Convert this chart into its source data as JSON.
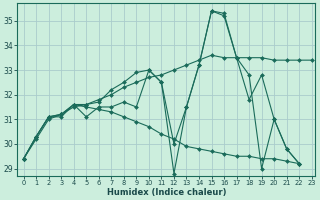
{
  "xlabel": "Humidex (Indice chaleur)",
  "bg_color": "#cceedd",
  "line_color": "#1a6b5a",
  "grid_color": "#aacccc",
  "xlim": [
    -0.5,
    23.3
  ],
  "ylim": [
    28.7,
    35.7
  ],
  "yticks": [
    29,
    30,
    31,
    32,
    33,
    34,
    35
  ],
  "xticks": [
    0,
    1,
    2,
    3,
    4,
    5,
    6,
    7,
    8,
    9,
    10,
    11,
    12,
    13,
    14,
    15,
    16,
    17,
    18,
    19,
    20,
    21,
    22,
    23
  ],
  "series": [
    {
      "x": [
        0,
        1,
        2,
        3,
        4,
        5,
        6,
        7,
        8,
        9,
        10,
        11,
        12,
        13,
        14,
        15,
        16,
        17,
        18,
        19,
        20,
        21,
        22
      ],
      "y": [
        29.4,
        30.3,
        31.1,
        31.1,
        31.6,
        31.1,
        31.5,
        31.5,
        31.7,
        31.5,
        33.0,
        32.5,
        28.8,
        31.5,
        33.2,
        35.4,
        35.3,
        33.5,
        31.8,
        32.8,
        31.0,
        29.8,
        29.2
      ]
    },
    {
      "x": [
        0,
        1,
        2,
        3,
        4,
        5,
        6,
        7,
        8,
        9,
        10,
        11,
        12,
        13,
        14,
        15,
        16,
        17,
        18,
        19,
        20,
        21,
        22,
        23
      ],
      "y": [
        29.4,
        30.2,
        31.0,
        31.2,
        31.5,
        31.6,
        31.8,
        32.0,
        32.3,
        32.5,
        32.7,
        32.8,
        33.0,
        33.2,
        33.4,
        33.6,
        33.5,
        33.5,
        33.5,
        33.5,
        33.4,
        33.4,
        33.4,
        33.4
      ]
    },
    {
      "x": [
        0,
        1,
        2,
        3,
        4,
        5,
        6,
        7,
        8,
        9,
        10,
        11,
        12,
        13,
        14,
        15,
        16,
        17,
        18,
        19,
        20,
        21,
        22
      ],
      "y": [
        29.4,
        30.3,
        31.1,
        31.2,
        31.6,
        31.5,
        31.4,
        31.3,
        31.1,
        30.9,
        30.7,
        30.4,
        30.2,
        29.9,
        29.8,
        29.7,
        29.6,
        29.5,
        29.5,
        29.4,
        29.4,
        29.3,
        29.2
      ]
    },
    {
      "x": [
        0,
        1,
        2,
        3,
        4,
        5,
        6,
        7,
        8,
        9,
        10,
        11,
        12,
        13,
        14,
        15,
        16,
        17,
        18,
        19,
        20,
        21,
        22
      ],
      "y": [
        29.4,
        30.3,
        31.1,
        31.2,
        31.6,
        31.6,
        31.7,
        32.2,
        32.5,
        32.9,
        33.0,
        32.5,
        30.0,
        31.5,
        33.2,
        35.4,
        35.2,
        33.5,
        32.8,
        29.0,
        31.0,
        29.8,
        29.2
      ]
    }
  ]
}
